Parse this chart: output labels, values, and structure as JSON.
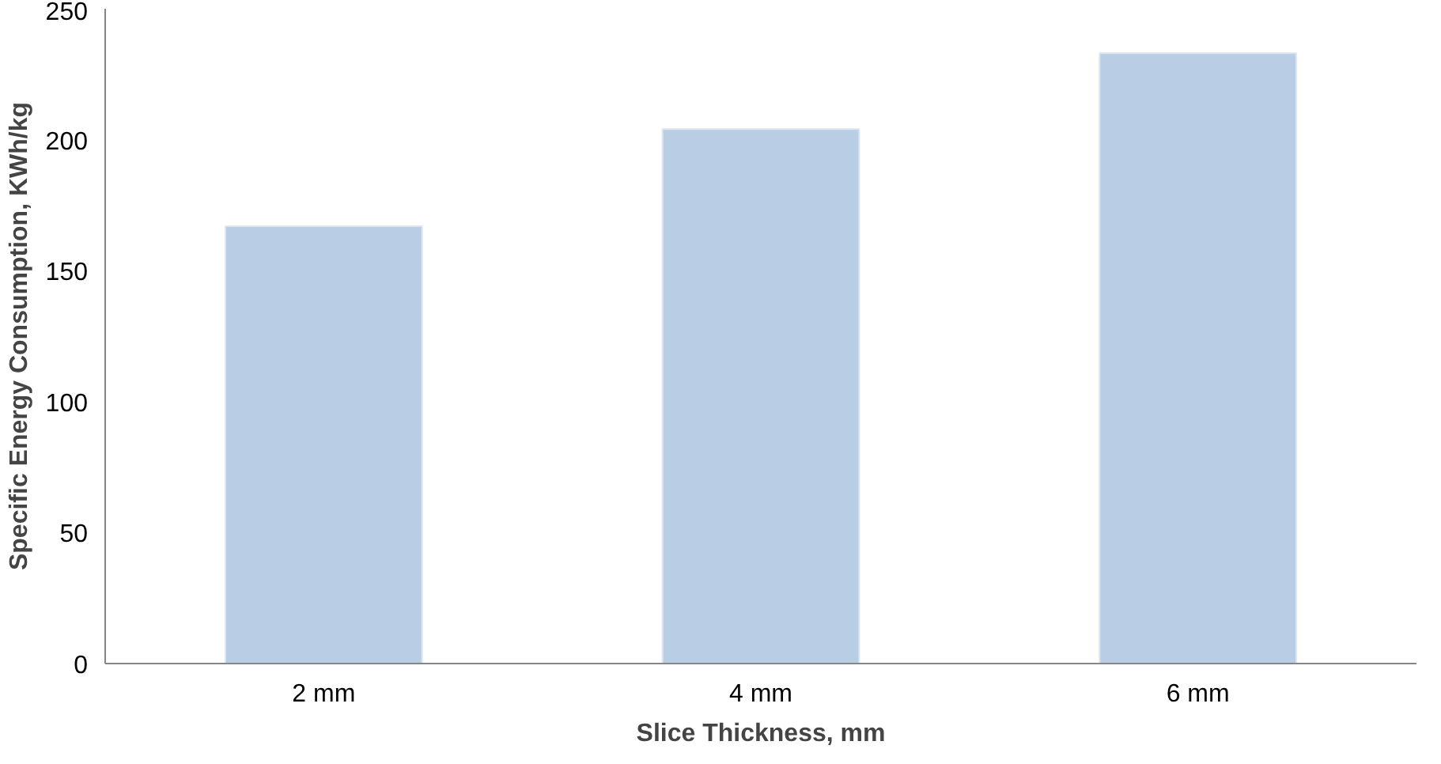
{
  "chart_data": {
    "type": "bar",
    "xlabel": "Slice Thickness, mm",
    "ylabel": "Specific Energy Consumption, KWh/kg",
    "categories": [
      "2 mm",
      "4 mm",
      "6 mm"
    ],
    "values": [
      167,
      204,
      233
    ],
    "color": "#b9cde5",
    "ylim": [
      0,
      250
    ],
    "yticks": [
      0,
      50,
      100,
      150,
      200,
      250
    ],
    "grid": false
  }
}
